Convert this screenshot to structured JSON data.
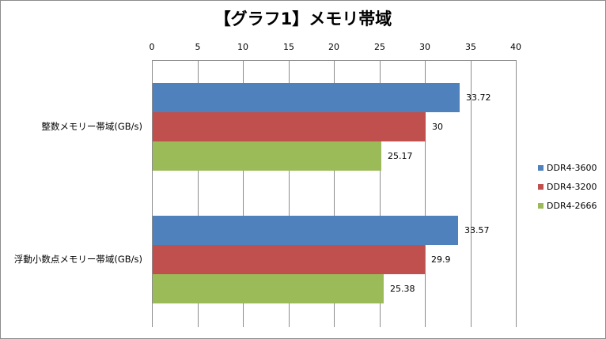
{
  "chart_data": {
    "type": "bar",
    "orientation": "horizontal",
    "title": "【グラフ1】メモリ帯域",
    "xlabel": "",
    "ylabel": "",
    "xlim": [
      0,
      40
    ],
    "x_ticks": [
      "0",
      "5",
      "10",
      "15",
      "20",
      "25",
      "30",
      "35",
      "40"
    ],
    "x_axis_position": "top",
    "grid": true,
    "legend_position": "right",
    "categories": [
      "整数メモリー帯域(GB/s)",
      "浮動小数点メモリー帯域(GB/s)"
    ],
    "series": [
      {
        "name": "DDR4-3600",
        "color": "#4f81bd",
        "values": [
          33.72,
          33.57
        ],
        "labels": [
          "33.72",
          "33.57"
        ]
      },
      {
        "name": "DDR4-3200",
        "color": "#c0504d",
        "values": [
          30,
          29.9
        ],
        "labels": [
          "30",
          "29.9"
        ]
      },
      {
        "name": "DDR4-2666",
        "color": "#9bbb59",
        "values": [
          25.17,
          25.38
        ],
        "labels": [
          "25.17",
          "25.38"
        ]
      }
    ]
  }
}
